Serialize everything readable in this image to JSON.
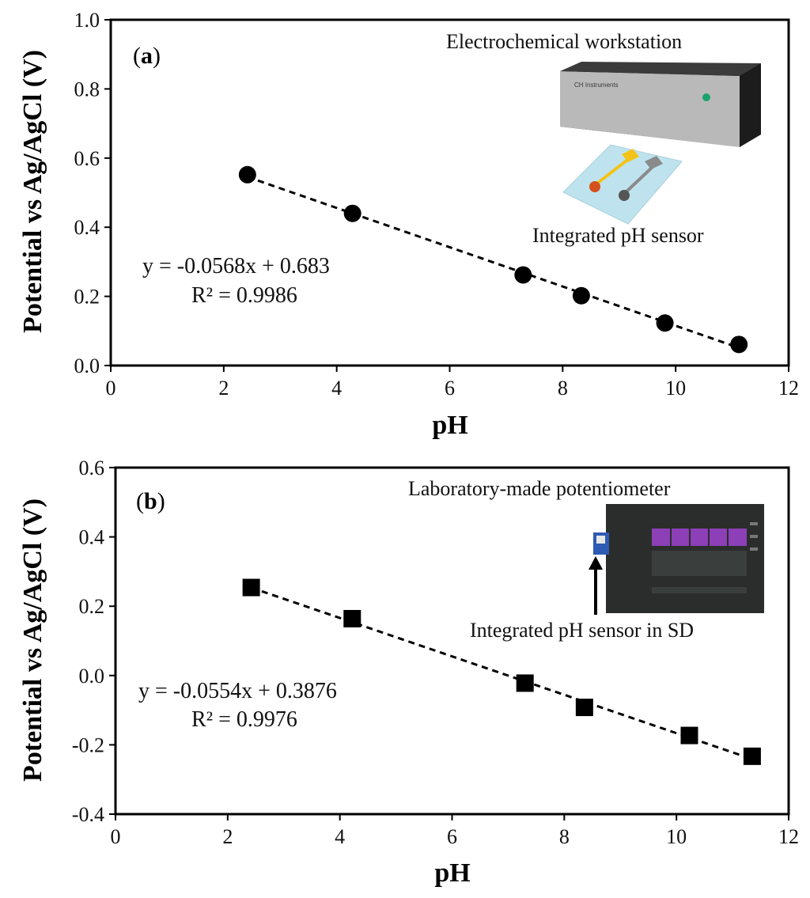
{
  "chart_data": [
    {
      "type": "scatter",
      "panel_label": "a",
      "xlabel": "pH",
      "ylabel": "Potential vs Ag/AgCl (V)",
      "xlim": [
        0,
        12
      ],
      "ylim": [
        0.0,
        1.0
      ],
      "x_ticks": [
        "0",
        "2",
        "4",
        "6",
        "8",
        "10",
        "12"
      ],
      "y_ticks": [
        "0.0",
        "0.2",
        "0.4",
        "0.6",
        "0.8",
        "1.0"
      ],
      "marker": "circle",
      "series": [
        {
          "x": [
            2.42,
            4.28,
            7.3,
            8.33,
            9.81,
            11.12
          ],
          "y": [
            0.552,
            0.44,
            0.262,
            0.202,
            0.123,
            0.061
          ]
        }
      ],
      "trendline": {
        "slope": -0.0568,
        "intercept": 0.683,
        "style": "dashed"
      },
      "equation": "y = -0.0568x + 0.683",
      "r2": "R² = 0.9986",
      "annotations": {
        "device": "Electrochemical workstation",
        "sensor": "Integrated pH sensor",
        "device_brand": "CH Instruments"
      }
    },
    {
      "type": "scatter",
      "panel_label": "b",
      "xlabel": "pH",
      "ylabel": "Potential vs Ag/AgCl (V)",
      "xlim": [
        0,
        12
      ],
      "ylim": [
        -0.4,
        0.6
      ],
      "x_ticks": [
        "0",
        "2",
        "4",
        "6",
        "8",
        "10",
        "12"
      ],
      "y_ticks": [
        "-0.4",
        "-0.2",
        "0.0",
        "0.2",
        "0.4",
        "0.6"
      ],
      "marker": "square",
      "series": [
        {
          "x": [
            2.42,
            4.22,
            7.3,
            8.36,
            10.23,
            11.35
          ],
          "y": [
            0.254,
            0.164,
            -0.022,
            -0.092,
            -0.173,
            -0.233
          ]
        }
      ],
      "trendline": {
        "slope": -0.0554,
        "intercept": 0.3876,
        "style": "dashed"
      },
      "equation": "y = -0.0554x + 0.3876",
      "r2": "R² = 0.9976",
      "annotations": {
        "device": "Laboratory-made potentiometer",
        "sensor": "Integrated pH sensor in SD"
      }
    }
  ],
  "colors": {
    "marker": "#000000",
    "axis": "#000000",
    "workstation_body": "#2b2b2b",
    "workstation_panel": "#b9b9b9",
    "sensor_substrate": "#bfe3ee",
    "electrode_gold": "#f3c318",
    "electrode_orange": "#d4501d",
    "electrode_gray": "#8a8a8a",
    "potentiometer_body": "#2a2d2b",
    "potentiometer_screen": "#8c3fb6",
    "sd_card": "#2d5bb5"
  }
}
